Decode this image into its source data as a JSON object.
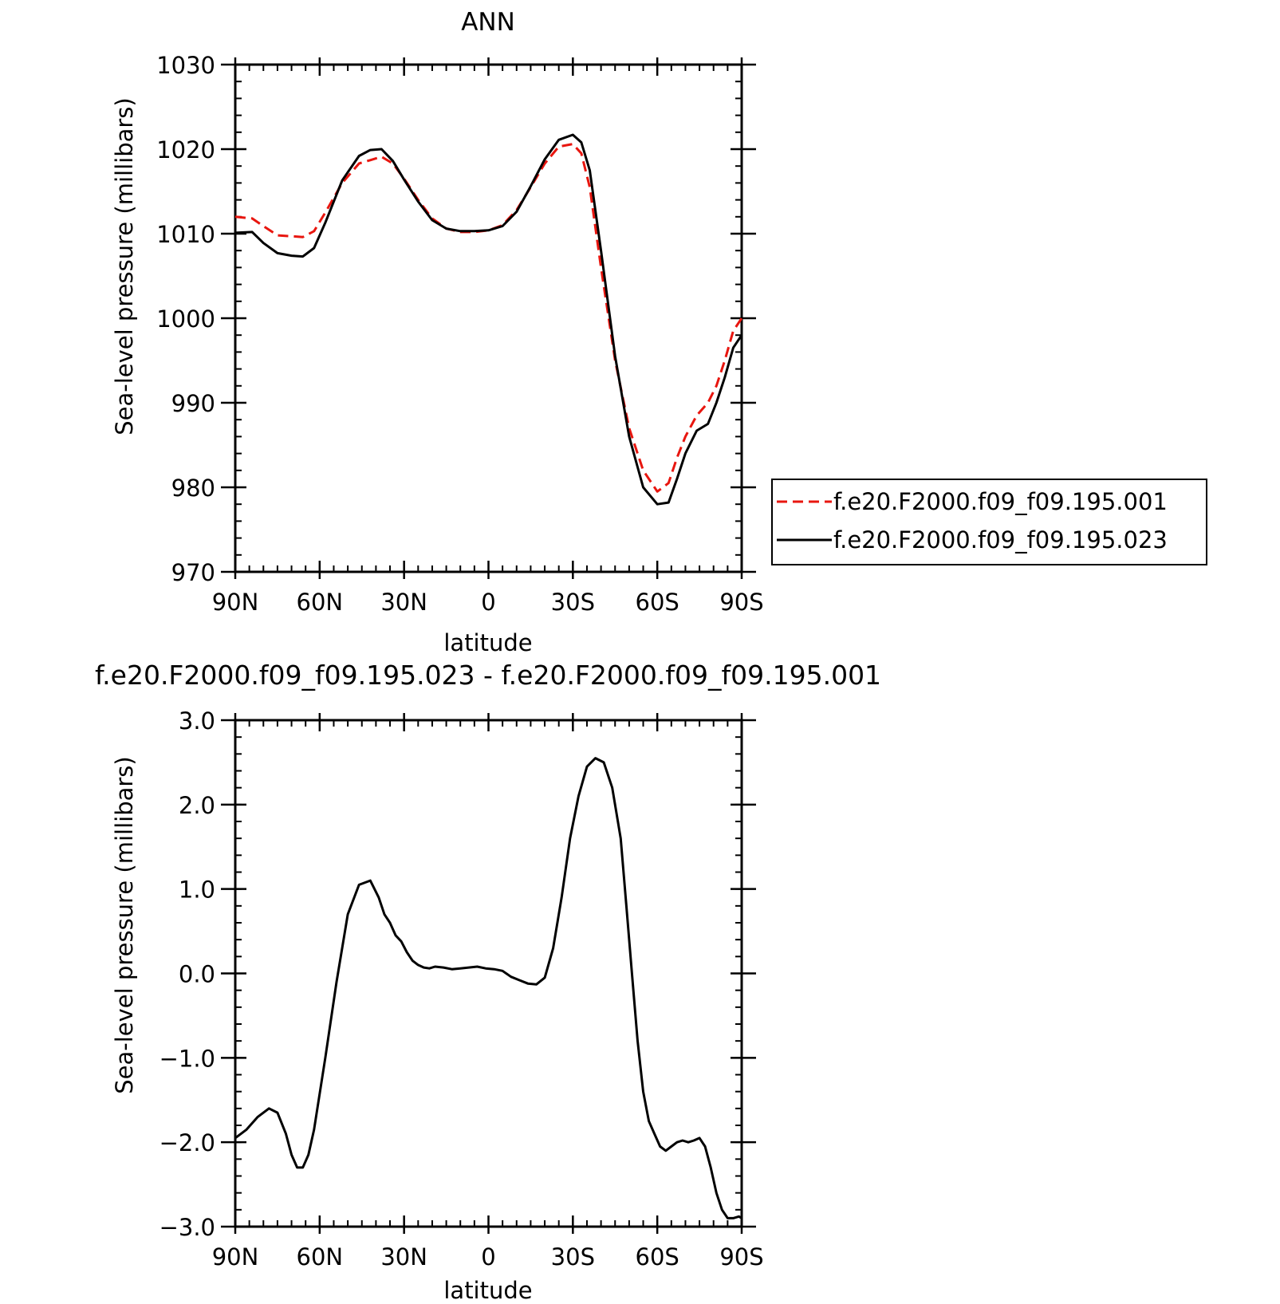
{
  "chart_data": [
    {
      "type": "line",
      "title": "ANN",
      "xlabel": "latitude",
      "ylabel": "Sea-level pressure (millibars)",
      "xlim": [
        90,
        -90
      ],
      "ylim": [
        970,
        1030
      ],
      "xticks": [
        90,
        60,
        30,
        0,
        -30,
        -60,
        -90
      ],
      "xtick_labels": [
        "90N",
        "60N",
        "30N",
        "0",
        "30S",
        "60S",
        "90S"
      ],
      "yticks": [
        970,
        980,
        990,
        1000,
        1010,
        1020,
        1030
      ],
      "ytick_labels": [
        "970",
        "980",
        "990",
        "1000",
        "1010",
        "1020",
        "1030"
      ],
      "legend": "right",
      "series": [
        {
          "name": "f.e20.F2000.f09_f09.195.001",
          "color": "#e8160f",
          "dash": "dashed",
          "x": [
            90,
            84,
            80,
            75,
            70,
            66,
            62,
            58,
            52,
            46,
            42,
            38,
            34,
            30,
            25,
            20,
            15,
            10,
            5,
            0,
            -5,
            -10,
            -15,
            -20,
            -25,
            -30,
            -33,
            -36,
            -40,
            -45,
            -50,
            -55,
            -60,
            -64,
            -67,
            -70,
            -74,
            -78,
            -81,
            -84,
            -87,
            -90
          ],
          "y": [
            1012.0,
            1011.8,
            1010.9,
            1009.8,
            1009.7,
            1009.6,
            1010.3,
            1012.5,
            1016.0,
            1018.3,
            1018.7,
            1019.1,
            1018.3,
            1016.5,
            1014.0,
            1011.8,
            1010.6,
            1010.2,
            1010.2,
            1010.4,
            1011.0,
            1012.8,
            1015.5,
            1018.3,
            1020.3,
            1020.6,
            1019.5,
            1015.5,
            1006.0,
            995.0,
            987.0,
            982.0,
            979.5,
            980.5,
            983.5,
            986.0,
            988.5,
            990.0,
            992.0,
            995.0,
            998.5,
            1000.0
          ]
        },
        {
          "name": "f.e20.F2000.f09_f09.195.023",
          "color": "#000000",
          "dash": "solid",
          "x": [
            90,
            84,
            80,
            75,
            70,
            66,
            62,
            58,
            52,
            46,
            42,
            38,
            34,
            30,
            25,
            20,
            15,
            10,
            5,
            0,
            -5,
            -10,
            -15,
            -20,
            -25,
            -30,
            -33,
            -36,
            -40,
            -45,
            -50,
            -55,
            -60,
            -64,
            -67,
            -70,
            -74,
            -78,
            -81,
            -84,
            -87,
            -90
          ],
          "y": [
            1010.1,
            1010.2,
            1008.9,
            1007.7,
            1007.4,
            1007.3,
            1008.3,
            1011.3,
            1016.3,
            1019.2,
            1019.9,
            1020.0,
            1018.6,
            1016.4,
            1013.8,
            1011.6,
            1010.6,
            1010.3,
            1010.3,
            1010.4,
            1010.9,
            1012.6,
            1015.6,
            1018.8,
            1021.1,
            1021.7,
            1020.8,
            1017.5,
            1008.0,
            995.5,
            986.0,
            980.0,
            978.0,
            978.2,
            981.0,
            984.0,
            986.7,
            987.5,
            990.0,
            993.0,
            996.5,
            998.0
          ]
        }
      ]
    },
    {
      "type": "line",
      "title": "f.e20.F2000.f09_f09.195.023 - f.e20.F2000.f09_f09.195.001",
      "xlabel": "latitude",
      "ylabel": "Sea-level pressure (millibars)",
      "xlim": [
        90,
        -90
      ],
      "ylim": [
        -3.0,
        3.0
      ],
      "xticks": [
        90,
        60,
        30,
        0,
        -30,
        -60,
        -90
      ],
      "xtick_labels": [
        "90N",
        "60N",
        "30N",
        "0",
        "30S",
        "60S",
        "90S"
      ],
      "yticks": [
        -3.0,
        -2.0,
        -1.0,
        0.0,
        1.0,
        2.0,
        3.0
      ],
      "ytick_labels": [
        "−3.0",
        "−2.0",
        "−1.0",
        "0.0",
        "1.0",
        "2.0",
        "3.0"
      ],
      "series": [
        {
          "color": "#000000",
          "dash": "solid",
          "x": [
            90,
            86,
            82,
            78,
            75,
            72,
            70,
            68,
            66,
            64,
            62,
            58,
            54,
            50,
            46,
            42,
            39,
            37,
            35,
            33,
            31,
            29,
            27,
            25,
            23,
            21,
            19,
            16,
            13,
            10,
            7,
            4,
            1,
            -2,
            -5,
            -8,
            -11,
            -14,
            -17,
            -20,
            -23,
            -26,
            -29,
            -32,
            -35,
            -38,
            -41,
            -44,
            -47,
            -49,
            -51,
            -53,
            -55,
            -57,
            -59,
            -61,
            -63,
            -65,
            -67,
            -69,
            -71,
            -73,
            -75,
            -77,
            -79,
            -81,
            -83,
            -85,
            -87,
            -89,
            -90
          ],
          "y": [
            -1.95,
            -1.85,
            -1.7,
            -1.6,
            -1.65,
            -1.9,
            -2.15,
            -2.3,
            -2.3,
            -2.15,
            -1.85,
            -1.0,
            -0.1,
            0.7,
            1.05,
            1.1,
            0.9,
            0.7,
            0.6,
            0.45,
            0.38,
            0.25,
            0.15,
            0.1,
            0.07,
            0.06,
            0.08,
            0.07,
            0.05,
            0.06,
            0.07,
            0.08,
            0.06,
            0.05,
            0.03,
            -0.04,
            -0.08,
            -0.12,
            -0.13,
            -0.05,
            0.3,
            0.9,
            1.6,
            2.1,
            2.45,
            2.55,
            2.5,
            2.2,
            1.6,
            0.8,
            0.0,
            -0.8,
            -1.4,
            -1.75,
            -1.9,
            -2.05,
            -2.1,
            -2.05,
            -2.0,
            -1.98,
            -2.0,
            -1.98,
            -1.95,
            -2.05,
            -2.3,
            -2.6,
            -2.8,
            -2.9,
            -2.9,
            -2.88,
            -2.9
          ]
        }
      ]
    }
  ]
}
